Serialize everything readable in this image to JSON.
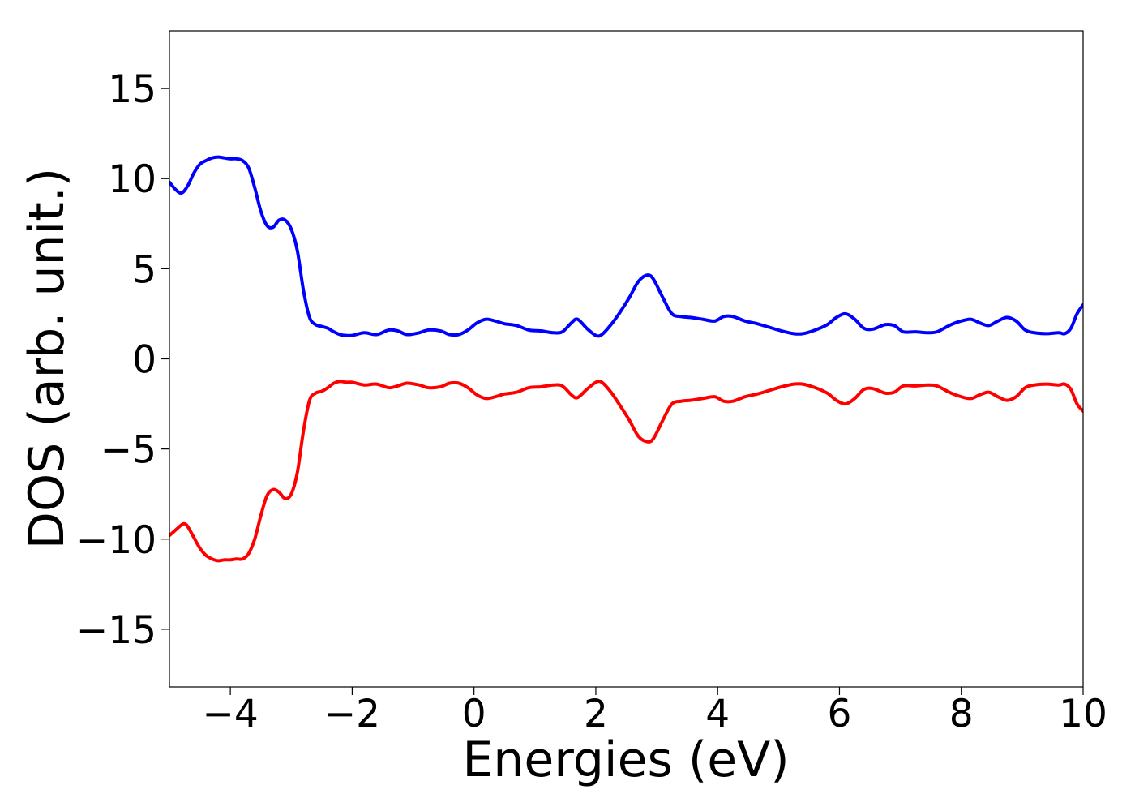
{
  "chart_data": {
    "type": "line",
    "title": "",
    "xlabel": "Energies (eV)",
    "ylabel": "DOS (arb. unit.)",
    "xlim": [
      -5,
      10
    ],
    "ylim": [
      -18.2,
      18.2
    ],
    "x_ticks": [
      -4,
      -2,
      0,
      2,
      4,
      6,
      8,
      10
    ],
    "x_tick_labels": [
      "−4",
      "−2",
      "0",
      "2",
      "4",
      "6",
      "8",
      "10"
    ],
    "y_ticks": [
      15,
      10,
      5,
      0,
      -5,
      -10,
      -15
    ],
    "y_tick_labels": [
      "15",
      "10",
      "5",
      "0",
      "−5",
      "−10",
      "−15"
    ],
    "grid": false,
    "legend": "none",
    "series": [
      {
        "color": "#0000ff",
        "x": [
          -5.0,
          -4.9,
          -4.8,
          -4.7,
          -4.6,
          -4.5,
          -4.4,
          -4.3,
          -4.2,
          -4.1,
          -4.0,
          -3.9,
          -3.8,
          -3.7,
          -3.6,
          -3.5,
          -3.4,
          -3.3,
          -3.2,
          -3.1,
          -3.0,
          -2.9,
          -2.8,
          -2.7,
          -2.6,
          -2.5,
          -2.4,
          -2.3,
          -2.2,
          -2.1,
          -2.0,
          -1.8,
          -1.6,
          -1.4,
          -1.25,
          -1.1,
          -0.9,
          -0.75,
          -0.55,
          -0.4,
          -0.25,
          -0.1,
          0.05,
          0.2,
          0.35,
          0.5,
          0.7,
          0.9,
          1.1,
          1.3,
          1.45,
          1.6,
          1.7,
          1.85,
          2.0,
          2.1,
          2.25,
          2.4,
          2.55,
          2.7,
          2.85,
          2.95,
          3.1,
          3.25,
          3.4,
          3.55,
          3.75,
          3.95,
          4.1,
          4.25,
          4.45,
          4.65,
          4.85,
          5.05,
          5.25,
          5.4,
          5.6,
          5.8,
          5.95,
          6.1,
          6.25,
          6.4,
          6.55,
          6.75,
          6.9,
          7.05,
          7.25,
          7.45,
          7.6,
          7.8,
          7.95,
          8.15,
          8.3,
          8.45,
          8.6,
          8.75,
          8.9,
          9.05,
          9.2,
          9.4,
          9.6,
          9.7,
          9.8,
          9.9,
          10.0
        ],
        "y": [
          9.8,
          9.4,
          9.2,
          9.6,
          10.3,
          10.8,
          11.0,
          11.15,
          11.2,
          11.15,
          11.1,
          11.1,
          11.0,
          10.6,
          9.5,
          8.2,
          7.4,
          7.3,
          7.7,
          7.7,
          7.2,
          6.0,
          3.8,
          2.3,
          1.9,
          1.8,
          1.7,
          1.5,
          1.35,
          1.3,
          1.3,
          1.45,
          1.35,
          1.6,
          1.55,
          1.35,
          1.45,
          1.6,
          1.55,
          1.35,
          1.35,
          1.6,
          2.0,
          2.2,
          2.1,
          1.95,
          1.85,
          1.6,
          1.55,
          1.45,
          1.5,
          2.0,
          2.2,
          1.7,
          1.3,
          1.35,
          1.9,
          2.6,
          3.4,
          4.3,
          4.65,
          4.4,
          3.4,
          2.5,
          2.35,
          2.3,
          2.2,
          2.1,
          2.35,
          2.35,
          2.1,
          1.95,
          1.75,
          1.55,
          1.4,
          1.4,
          1.6,
          1.9,
          2.3,
          2.5,
          2.2,
          1.7,
          1.65,
          1.9,
          1.85,
          1.5,
          1.5,
          1.45,
          1.5,
          1.85,
          2.05,
          2.2,
          2.0,
          1.85,
          2.1,
          2.3,
          2.1,
          1.6,
          1.45,
          1.4,
          1.45,
          1.4,
          1.7,
          2.5,
          3.0
        ]
      },
      {
        "color": "#ff0000",
        "x": [
          -5.0,
          -4.9,
          -4.8,
          -4.75,
          -4.7,
          -4.6,
          -4.5,
          -4.4,
          -4.3,
          -4.2,
          -4.1,
          -4.0,
          -3.9,
          -3.8,
          -3.7,
          -3.6,
          -3.5,
          -3.4,
          -3.3,
          -3.2,
          -3.1,
          -3.0,
          -2.9,
          -2.8,
          -2.7,
          -2.6,
          -2.5,
          -2.4,
          -2.3,
          -2.2,
          -2.1,
          -2.0,
          -1.8,
          -1.6,
          -1.4,
          -1.25,
          -1.1,
          -0.9,
          -0.75,
          -0.55,
          -0.4,
          -0.25,
          -0.1,
          0.05,
          0.2,
          0.35,
          0.5,
          0.7,
          0.9,
          1.1,
          1.3,
          1.45,
          1.6,
          1.7,
          1.85,
          2.0,
          2.1,
          2.25,
          2.4,
          2.55,
          2.7,
          2.85,
          2.95,
          3.1,
          3.25,
          3.4,
          3.55,
          3.75,
          3.95,
          4.1,
          4.25,
          4.45,
          4.65,
          4.85,
          5.05,
          5.25,
          5.4,
          5.6,
          5.8,
          5.95,
          6.1,
          6.25,
          6.4,
          6.55,
          6.75,
          6.9,
          7.05,
          7.25,
          7.45,
          7.6,
          7.8,
          7.95,
          8.15,
          8.3,
          8.45,
          8.6,
          8.75,
          8.9,
          9.05,
          9.2,
          9.4,
          9.6,
          9.7,
          9.8,
          9.9,
          10.0
        ],
        "y": [
          -9.8,
          -9.5,
          -9.2,
          -9.15,
          -9.3,
          -9.9,
          -10.5,
          -10.9,
          -11.1,
          -11.2,
          -11.15,
          -11.15,
          -11.1,
          -11.1,
          -10.8,
          -10.0,
          -8.7,
          -7.6,
          -7.25,
          -7.4,
          -7.75,
          -7.5,
          -6.3,
          -4.0,
          -2.3,
          -1.9,
          -1.8,
          -1.6,
          -1.35,
          -1.25,
          -1.3,
          -1.3,
          -1.45,
          -1.4,
          -1.6,
          -1.5,
          -1.35,
          -1.45,
          -1.6,
          -1.55,
          -1.35,
          -1.35,
          -1.6,
          -2.0,
          -2.2,
          -2.1,
          -1.95,
          -1.85,
          -1.6,
          -1.55,
          -1.45,
          -1.5,
          -2.0,
          -2.15,
          -1.7,
          -1.3,
          -1.3,
          -1.85,
          -2.6,
          -3.4,
          -4.3,
          -4.6,
          -4.4,
          -3.4,
          -2.5,
          -2.35,
          -2.3,
          -2.2,
          -2.1,
          -2.35,
          -2.35,
          -2.1,
          -1.95,
          -1.75,
          -1.55,
          -1.4,
          -1.4,
          -1.6,
          -1.9,
          -2.3,
          -2.5,
          -2.2,
          -1.7,
          -1.65,
          -1.9,
          -1.85,
          -1.5,
          -1.5,
          -1.45,
          -1.5,
          -1.85,
          -2.05,
          -2.2,
          -2.0,
          -1.85,
          -2.1,
          -2.3,
          -2.1,
          -1.6,
          -1.45,
          -1.4,
          -1.45,
          -1.4,
          -1.7,
          -2.5,
          -2.9
        ]
      }
    ]
  }
}
